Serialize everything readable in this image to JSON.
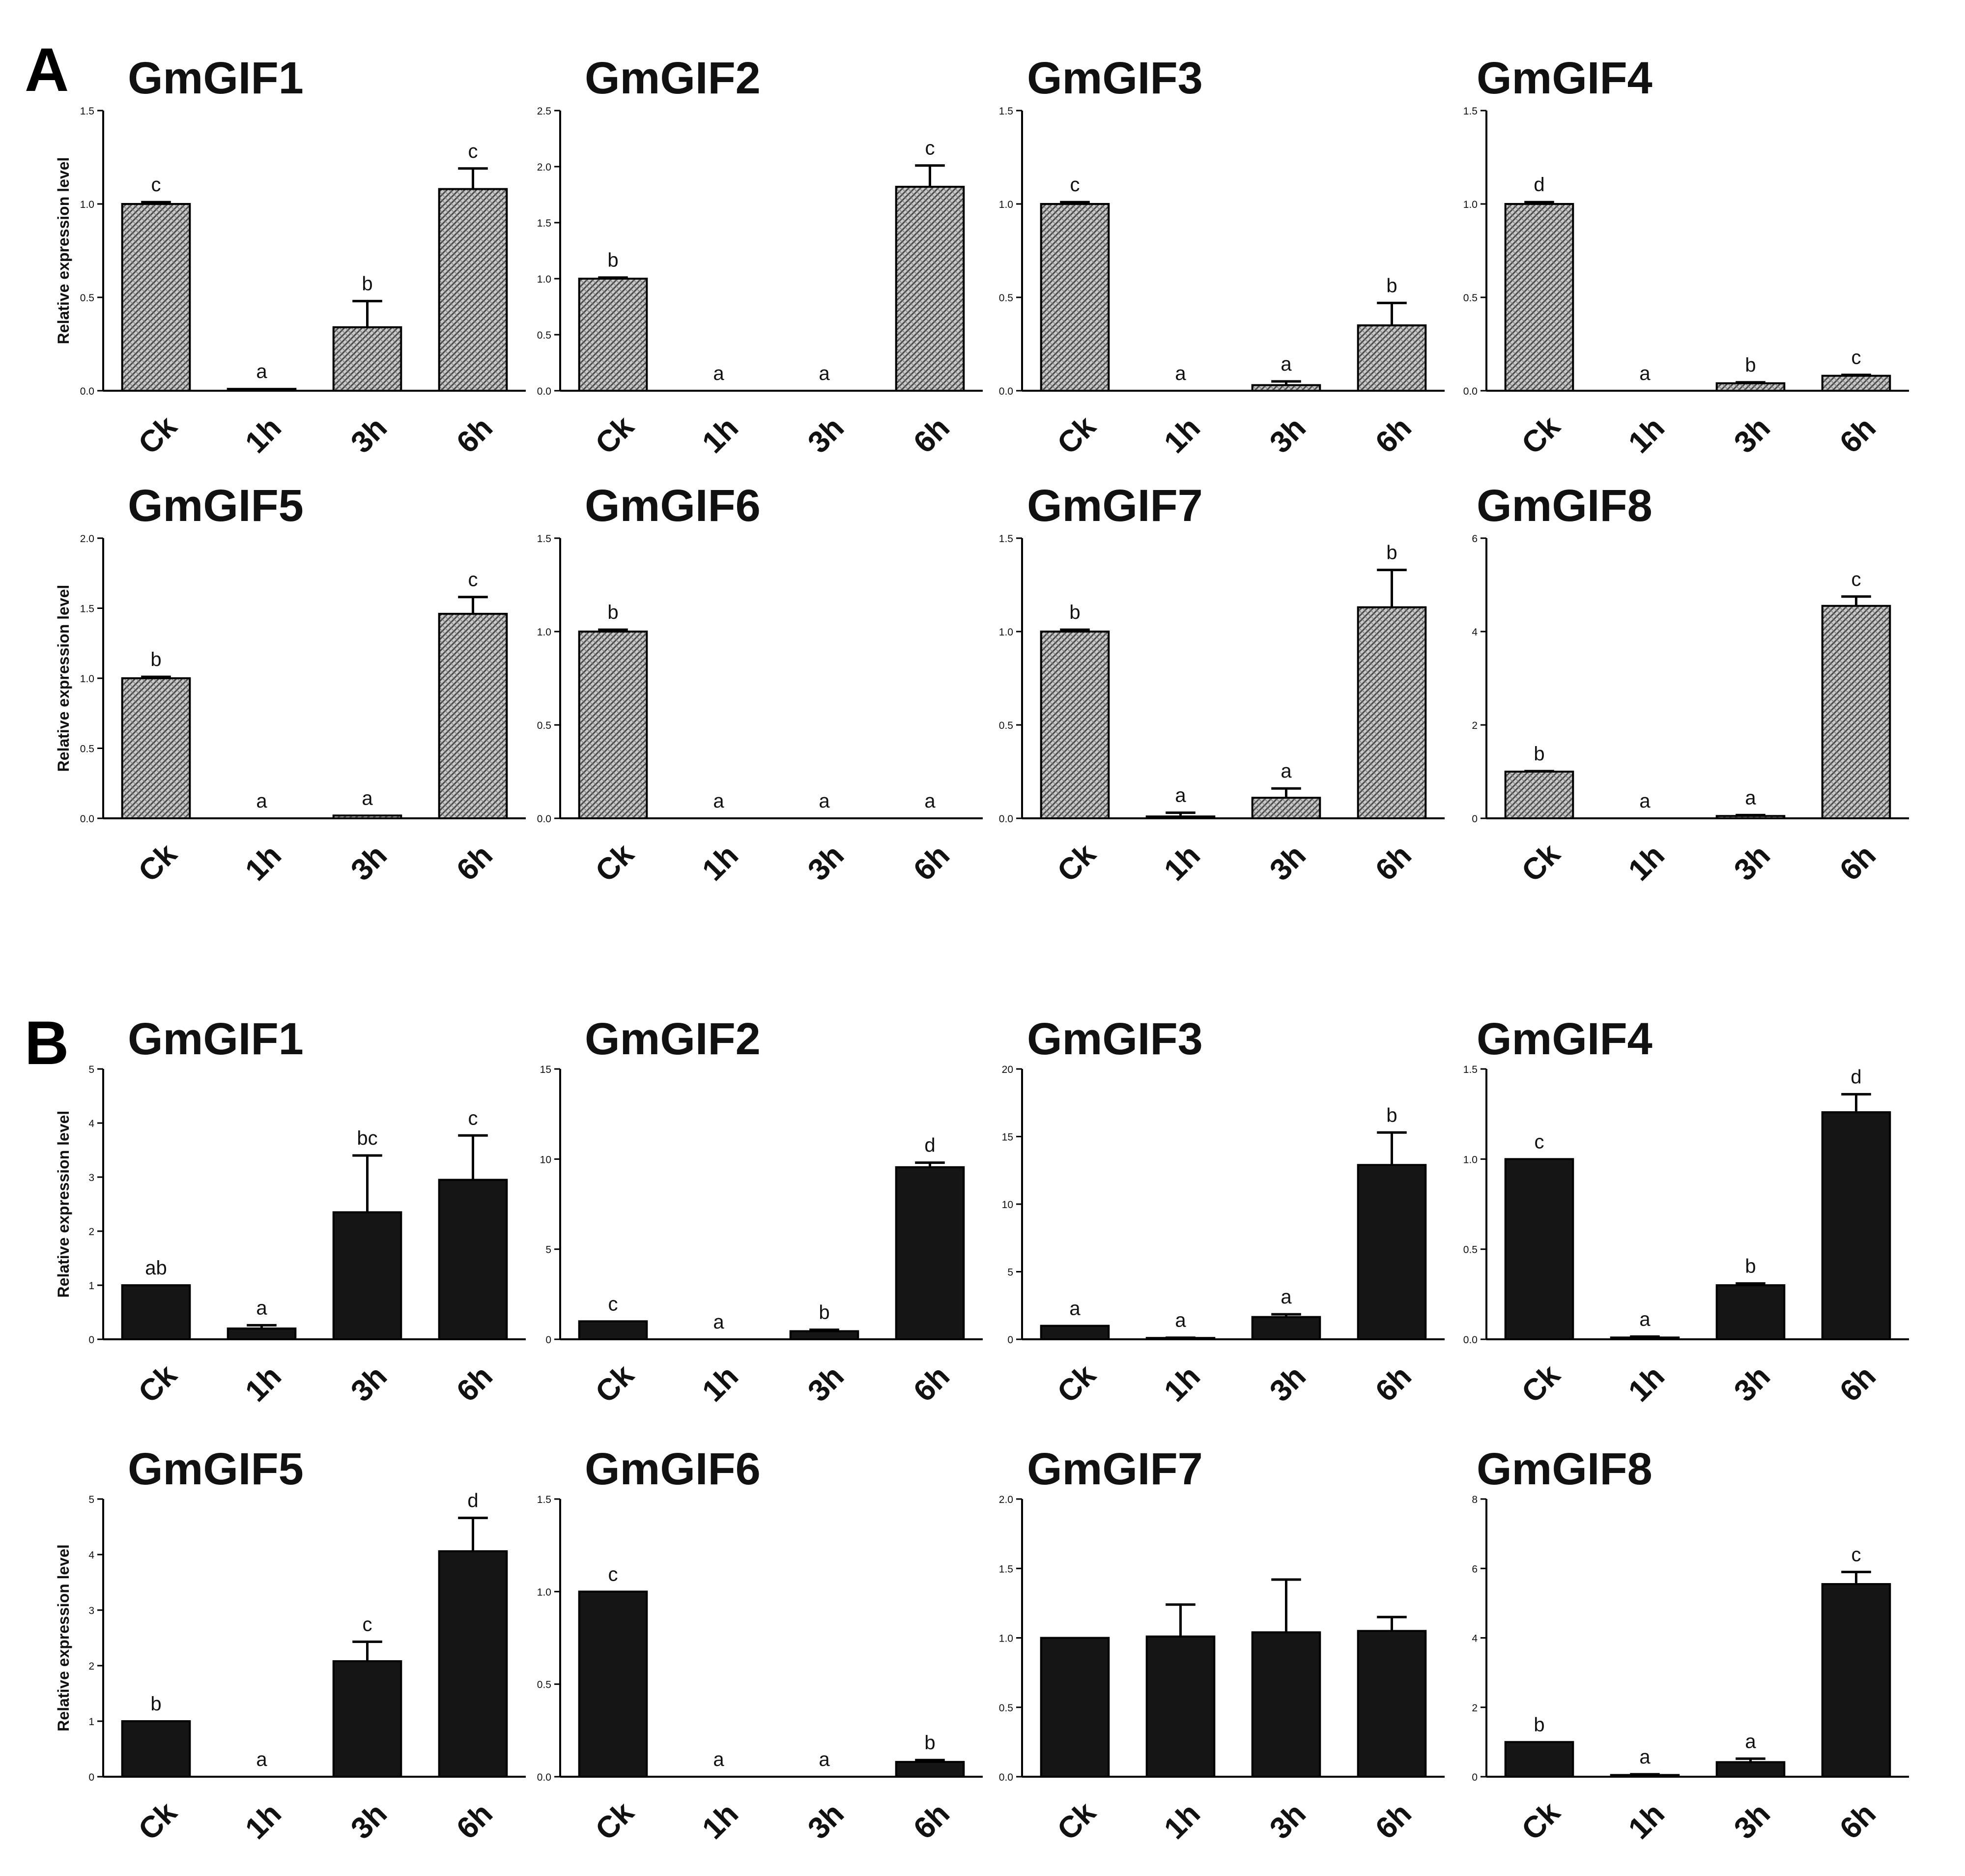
{
  "panels": [
    {
      "letter": "A",
      "fill": "pattern"
    },
    {
      "letter": "B",
      "fill": "#151515"
    }
  ],
  "ylabel": "Relative expression level",
  "chart_data": [
    {
      "type": "bar",
      "panel": "A",
      "title": "GmGIF1",
      "categories": [
        "Ck",
        "1h",
        "3h",
        "6h"
      ],
      "values": [
        1.0,
        0.01,
        0.34,
        1.08
      ],
      "errors": [
        0.01,
        0.0,
        0.14,
        0.11
      ],
      "significance": [
        "c",
        "a",
        "b",
        "c"
      ],
      "ylim": [
        0,
        1.5
      ],
      "yticks": [
        "0.0",
        "0.5",
        "1.0",
        "1.5"
      ],
      "ylabel": "Relative expression level"
    },
    {
      "type": "bar",
      "panel": "A",
      "title": "GmGIF2",
      "categories": [
        "Ck",
        "1h",
        "3h",
        "6h"
      ],
      "values": [
        1.0,
        0.0,
        0.0,
        1.82
      ],
      "errors": [
        0.01,
        0.0,
        0.0,
        0.19
      ],
      "significance": [
        "b",
        "a",
        "a",
        "c"
      ],
      "ylim": [
        0,
        2.5
      ],
      "yticks": [
        "0.0",
        "0.5",
        "1.0",
        "1.5",
        "2.0",
        "2.5"
      ],
      "ylabel": ""
    },
    {
      "type": "bar",
      "panel": "A",
      "title": "GmGIF3",
      "categories": [
        "Ck",
        "1h",
        "3h",
        "6h"
      ],
      "values": [
        1.0,
        0.0,
        0.03,
        0.35
      ],
      "errors": [
        0.01,
        0.0,
        0.02,
        0.12
      ],
      "significance": [
        "c",
        "a",
        "a",
        "b"
      ],
      "ylim": [
        0,
        1.5
      ],
      "yticks": [
        "0.0",
        "0.5",
        "1.0",
        "1.5"
      ],
      "ylabel": ""
    },
    {
      "type": "bar",
      "panel": "A",
      "title": "GmGIF4",
      "categories": [
        "Ck",
        "1h",
        "3h",
        "6h"
      ],
      "values": [
        1.0,
        0.0,
        0.04,
        0.08
      ],
      "errors": [
        0.01,
        0.0,
        0.005,
        0.005
      ],
      "significance": [
        "d",
        "a",
        "b",
        "c"
      ],
      "ylim": [
        0,
        1.5
      ],
      "yticks": [
        "0.0",
        "0.5",
        "1.0",
        "1.5"
      ],
      "ylabel": ""
    },
    {
      "type": "bar",
      "panel": "A",
      "title": "GmGIF5",
      "categories": [
        "Ck",
        "1h",
        "3h",
        "6h"
      ],
      "values": [
        1.0,
        0.0,
        0.02,
        1.46
      ],
      "errors": [
        0.01,
        0.0,
        0.0,
        0.12
      ],
      "significance": [
        "b",
        "a",
        "a",
        "c"
      ],
      "ylim": [
        0,
        2.0
      ],
      "yticks": [
        "0.0",
        "0.5",
        "1.0",
        "1.5",
        "2.0"
      ],
      "ylabel": "Relative expression level"
    },
    {
      "type": "bar",
      "panel": "A",
      "title": "GmGIF6",
      "categories": [
        "Ck",
        "1h",
        "3h",
        "6h"
      ],
      "values": [
        1.0,
        0.0,
        0.0,
        0.0
      ],
      "errors": [
        0.01,
        0.0,
        0.0,
        0.0
      ],
      "significance": [
        "b",
        "a",
        "a",
        "a"
      ],
      "ylim": [
        0,
        1.5
      ],
      "yticks": [
        "0.0",
        "0.5",
        "1.0",
        "1.5"
      ],
      "ylabel": ""
    },
    {
      "type": "bar",
      "panel": "A",
      "title": "GmGIF7",
      "categories": [
        "Ck",
        "1h",
        "3h",
        "6h"
      ],
      "values": [
        1.0,
        0.01,
        0.11,
        1.13
      ],
      "errors": [
        0.01,
        0.02,
        0.05,
        0.2
      ],
      "significance": [
        "b",
        "a",
        "a",
        "b"
      ],
      "ylim": [
        0,
        1.5
      ],
      "yticks": [
        "0.0",
        "0.5",
        "1.0",
        "1.5"
      ],
      "ylabel": ""
    },
    {
      "type": "bar",
      "panel": "A",
      "title": "GmGIF8",
      "categories": [
        "Ck",
        "1h",
        "3h",
        "6h"
      ],
      "values": [
        1.0,
        0.0,
        0.05,
        4.55
      ],
      "errors": [
        0.01,
        0.0,
        0.02,
        0.2
      ],
      "significance": [
        "b",
        "a",
        "a",
        "c"
      ],
      "ylim": [
        0,
        6
      ],
      "yticks": [
        "0",
        "2",
        "4",
        "6"
      ],
      "ylabel": ""
    },
    {
      "type": "bar",
      "panel": "B",
      "title": "GmGIF1",
      "categories": [
        "Ck",
        "1h",
        "3h",
        "6h"
      ],
      "values": [
        1.0,
        0.2,
        2.35,
        2.95
      ],
      "errors": [
        0.0,
        0.06,
        1.05,
        0.82
      ],
      "significance": [
        "ab",
        "a",
        "bc",
        "c"
      ],
      "ylim": [
        0,
        5
      ],
      "yticks": [
        "0",
        "1",
        "2",
        "3",
        "4",
        "5"
      ],
      "ylabel": "Relative expression level"
    },
    {
      "type": "bar",
      "panel": "B",
      "title": "GmGIF2",
      "categories": [
        "Ck",
        "1h",
        "3h",
        "6h"
      ],
      "values": [
        1.0,
        0.0,
        0.45,
        9.55
      ],
      "errors": [
        0.0,
        0.0,
        0.08,
        0.25
      ],
      "significance": [
        "c",
        "a",
        "b",
        "d"
      ],
      "ylim": [
        0,
        15
      ],
      "yticks": [
        "0",
        "5",
        "10",
        "15"
      ],
      "ylabel": ""
    },
    {
      "type": "bar",
      "panel": "B",
      "title": "GmGIF3",
      "categories": [
        "Ck",
        "1h",
        "3h",
        "6h"
      ],
      "values": [
        1.0,
        0.1,
        1.65,
        12.9
      ],
      "errors": [
        0.0,
        0.02,
        0.2,
        2.4
      ],
      "significance": [
        "a",
        "a",
        "a",
        "b"
      ],
      "ylim": [
        0,
        20
      ],
      "yticks": [
        "0",
        "5",
        "10",
        "15",
        "20"
      ],
      "ylabel": ""
    },
    {
      "type": "bar",
      "panel": "B",
      "title": "GmGIF4",
      "categories": [
        "Ck",
        "1h",
        "3h",
        "6h"
      ],
      "values": [
        1.0,
        0.01,
        0.3,
        1.26
      ],
      "errors": [
        0.0,
        0.005,
        0.01,
        0.1
      ],
      "significance": [
        "c",
        "a",
        "b",
        "d"
      ],
      "ylim": [
        0,
        1.5
      ],
      "yticks": [
        "0.0",
        "0.5",
        "1.0",
        "1.5"
      ],
      "ylabel": ""
    },
    {
      "type": "bar",
      "panel": "B",
      "title": "GmGIF5",
      "categories": [
        "Ck",
        "1h",
        "3h",
        "6h"
      ],
      "values": [
        1.0,
        0.0,
        2.08,
        4.06
      ],
      "errors": [
        0.0,
        0.0,
        0.35,
        0.6
      ],
      "significance": [
        "b",
        "a",
        "c",
        "d"
      ],
      "ylim": [
        0,
        5
      ],
      "yticks": [
        "0",
        "1",
        "2",
        "3",
        "4",
        "5"
      ],
      "ylabel": "Relative expression level"
    },
    {
      "type": "bar",
      "panel": "B",
      "title": "GmGIF6",
      "categories": [
        "Ck",
        "1h",
        "3h",
        "6h"
      ],
      "values": [
        1.0,
        0.0,
        0.0,
        0.08
      ],
      "errors": [
        0.0,
        0.0,
        0.0,
        0.01
      ],
      "significance": [
        "c",
        "a",
        "a",
        "b"
      ],
      "ylim": [
        0,
        1.5
      ],
      "yticks": [
        "0.0",
        "0.5",
        "1.0",
        "1.5"
      ],
      "ylabel": ""
    },
    {
      "type": "bar",
      "panel": "B",
      "title": "GmGIF7",
      "categories": [
        "Ck",
        "1h",
        "3h",
        "6h"
      ],
      "values": [
        1.0,
        1.01,
        1.04,
        1.05
      ],
      "errors": [
        0.0,
        0.23,
        0.38,
        0.1
      ],
      "significance": [
        "",
        "",
        "",
        ""
      ],
      "ylim": [
        0,
        2.0
      ],
      "yticks": [
        "0.0",
        "0.5",
        "1.0",
        "1.5",
        "2.0"
      ],
      "ylabel": ""
    },
    {
      "type": "bar",
      "panel": "B",
      "title": "GmGIF8",
      "categories": [
        "Ck",
        "1h",
        "3h",
        "6h"
      ],
      "values": [
        1.0,
        0.05,
        0.42,
        5.55
      ],
      "errors": [
        0.0,
        0.02,
        0.1,
        0.35
      ],
      "significance": [
        "b",
        "a",
        "a",
        "c"
      ],
      "ylim": [
        0,
        8
      ],
      "yticks": [
        "0",
        "2",
        "4",
        "6",
        "8"
      ],
      "ylabel": ""
    }
  ]
}
